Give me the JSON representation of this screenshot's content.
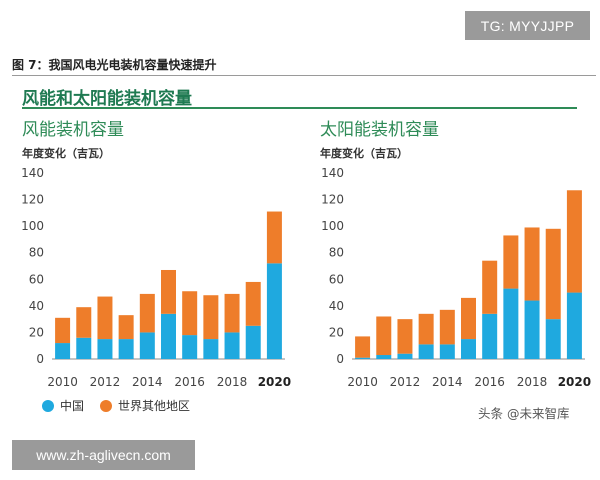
{
  "badge_top": "TG: MYYJJPP",
  "figure_caption": "图 7：我国风电光电装机容量快速提升",
  "section_title": "风能和太阳能装机容量",
  "watermark": "头条 @未来智库",
  "badge_bottom": "www.zh-aglivecn.com",
  "colors": {
    "china": "#1fa9df",
    "rest_of_world": "#ee7d2a",
    "accent": "#2e8b57"
  },
  "chart_data": [
    {
      "type": "bar",
      "stacked": true,
      "title": "风能装机容量",
      "ylabel": "年度变化（吉瓦）",
      "xlabel": "",
      "ylim": [
        0,
        140
      ],
      "yticks": [
        0,
        20,
        40,
        60,
        80,
        100,
        120,
        140
      ],
      "categories": [
        2010,
        2011,
        2012,
        2013,
        2014,
        2015,
        2016,
        2017,
        2018,
        2019,
        2020
      ],
      "xtick_labels": [
        "2010",
        "",
        "2012",
        "",
        "2014",
        "",
        "2016",
        "",
        "2018",
        "",
        "2020"
      ],
      "series": [
        {
          "name": "中国",
          "values": [
            12,
            16,
            15,
            15,
            20,
            34,
            18,
            15,
            20,
            25,
            72
          ]
        },
        {
          "name": "世界其他地区",
          "values": [
            19,
            23,
            32,
            18,
            29,
            33,
            33,
            33,
            29,
            33,
            39
          ]
        }
      ],
      "legend": "bottom-left"
    },
    {
      "type": "bar",
      "stacked": true,
      "title": "太阳能装机容量",
      "ylabel": "年度变化（吉瓦）",
      "xlabel": "",
      "ylim": [
        0,
        140
      ],
      "yticks": [
        0,
        20,
        40,
        60,
        80,
        100,
        120,
        140
      ],
      "categories": [
        2010,
        2011,
        2012,
        2013,
        2014,
        2015,
        2016,
        2017,
        2018,
        2019,
        2020
      ],
      "xtick_labels": [
        "2010",
        "",
        "2012",
        "",
        "2014",
        "",
        "2016",
        "",
        "2018",
        "",
        "2020"
      ],
      "series": [
        {
          "name": "中国",
          "values": [
            1,
            3,
            4,
            11,
            11,
            15,
            34,
            53,
            44,
            30,
            50
          ]
        },
        {
          "name": "世界其他地区",
          "values": [
            16,
            29,
            26,
            23,
            26,
            31,
            40,
            40,
            55,
            68,
            77
          ]
        }
      ]
    }
  ]
}
